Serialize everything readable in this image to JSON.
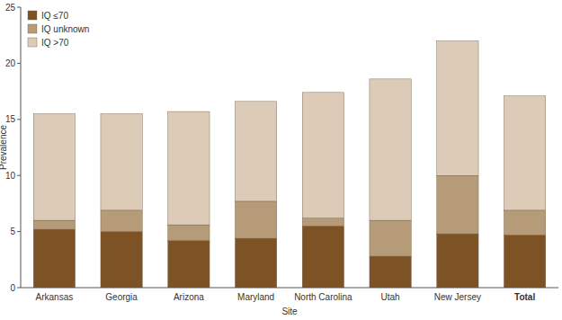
{
  "chart_data": {
    "type": "bar",
    "stacked": true,
    "x_label": "Site",
    "y_label": "Prevalence",
    "categories": [
      "Arkansas",
      "Georgia",
      "Arizona",
      "Maryland",
      "North Carolina",
      "Utah",
      "New Jersey",
      "Total"
    ],
    "series": [
      {
        "name": "IQ ≤70",
        "color": "#7d5326",
        "values": [
          5.2,
          5.0,
          4.2,
          4.4,
          5.5,
          2.8,
          4.8,
          4.7
        ]
      },
      {
        "name": "IQ unknown",
        "color": "#b69b78",
        "values": [
          0.8,
          1.9,
          1.4,
          3.3,
          0.7,
          3.2,
          5.2,
          2.2
        ]
      },
      {
        "name": "IQ >70",
        "color": "#dccbb6",
        "values": [
          9.5,
          8.6,
          10.1,
          8.9,
          11.2,
          12.6,
          12.0,
          10.2
        ]
      }
    ],
    "ylim": [
      0,
      25
    ],
    "yticks": [
      0,
      5,
      10,
      15,
      20,
      25
    ],
    "grid": false,
    "legend": "top-left"
  }
}
